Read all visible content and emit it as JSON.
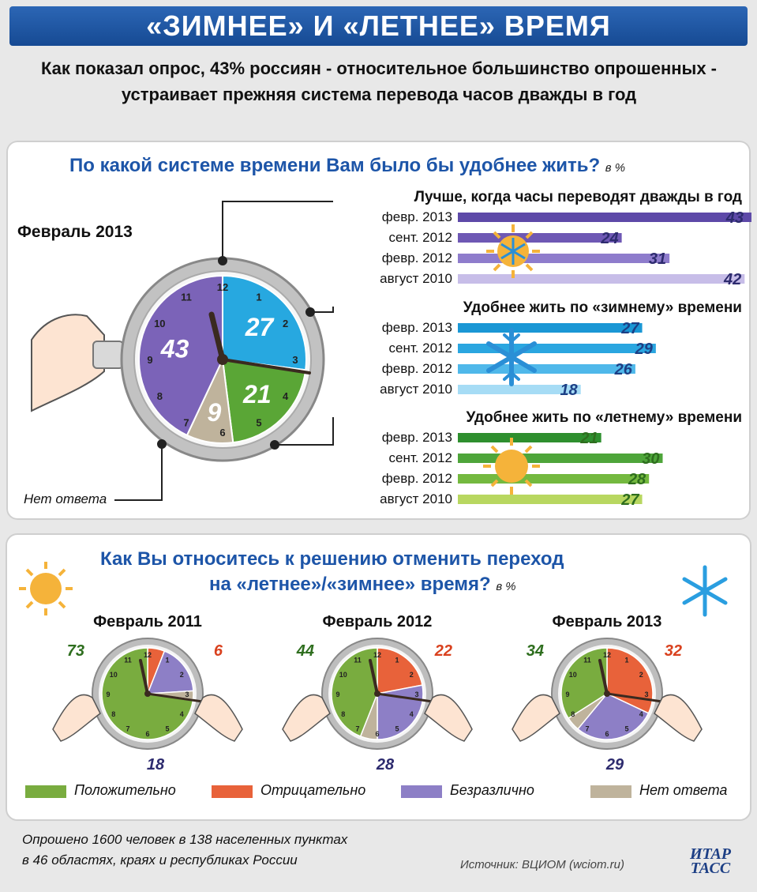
{
  "title": "«ЗИМНЕЕ» И «ЛЕТНЕЕ» ВРЕМЯ",
  "subtitle": "Как показал опрос, 43% россиян - относительное большинство опрошенных - устраивает прежняя система перевода часов дважды в год",
  "section1": {
    "question": "По какой системе времени Вам было бы удобнее жить?",
    "unit": "в %",
    "period": "Февраль 2013",
    "no_answer_label": "Нет ответа"
  },
  "section2": {
    "question_line1": "Как Вы относитесь к решению отменить переход",
    "question_line2": "на «летнее»/«зимнее» время?",
    "unit": "в %"
  },
  "footer": {
    "line1": "Опрошено 1600 человек в 138 населенных пунктах",
    "line2": "в 46 областях, краях и республиках России",
    "source": "Источник: ВЦИОМ (wciom.ru)",
    "logo_line1": "ИТАР",
    "logo_line2": "ТАСС"
  },
  "colors": {
    "twice": "#7b63b8",
    "winter": "#27a8e0",
    "summer": "#5aa636",
    "positive": "#79ac3f",
    "negative": "#e8623a",
    "indifferent": "#8d7fc6",
    "no_answer": "#bfb39c",
    "accent": "#1d55a8"
  },
  "chart_data": [
    {
      "type": "pie",
      "title": "Февраль 2013",
      "categories": [
        "Лучше, когда часы переводят дважды в год",
        "Удобнее жить по «зимнему» времени",
        "Удобнее жить по «летнему» времени",
        "Нет ответа"
      ],
      "values": [
        43,
        27,
        21,
        9
      ]
    },
    {
      "type": "bar",
      "categories": [
        "февр. 2013",
        "сент. 2012",
        "февр. 2012",
        "август 2010"
      ],
      "series": [
        {
          "name": "Лучше, когда часы переводят дважды в год",
          "values": [
            43,
            24,
            31,
            42
          ]
        },
        {
          "name": "Удобнее жить по «зимнему» времени",
          "values": [
            27,
            29,
            26,
            18
          ]
        },
        {
          "name": "Удобнее жить по «летнему» времени",
          "values": [
            21,
            30,
            28,
            27
          ]
        }
      ]
    },
    {
      "type": "pie",
      "legend": [
        "Положительно",
        "Отрицательно",
        "Безразлично",
        "Нет ответа"
      ],
      "charts": [
        {
          "title": "Февраль 2011",
          "values": [
            73,
            6,
            18,
            3
          ]
        },
        {
          "title": "Февраль 2012",
          "values": [
            44,
            22,
            28,
            6
          ]
        },
        {
          "title": "Февраль 2013",
          "values": [
            34,
            32,
            29,
            5
          ]
        }
      ]
    }
  ]
}
